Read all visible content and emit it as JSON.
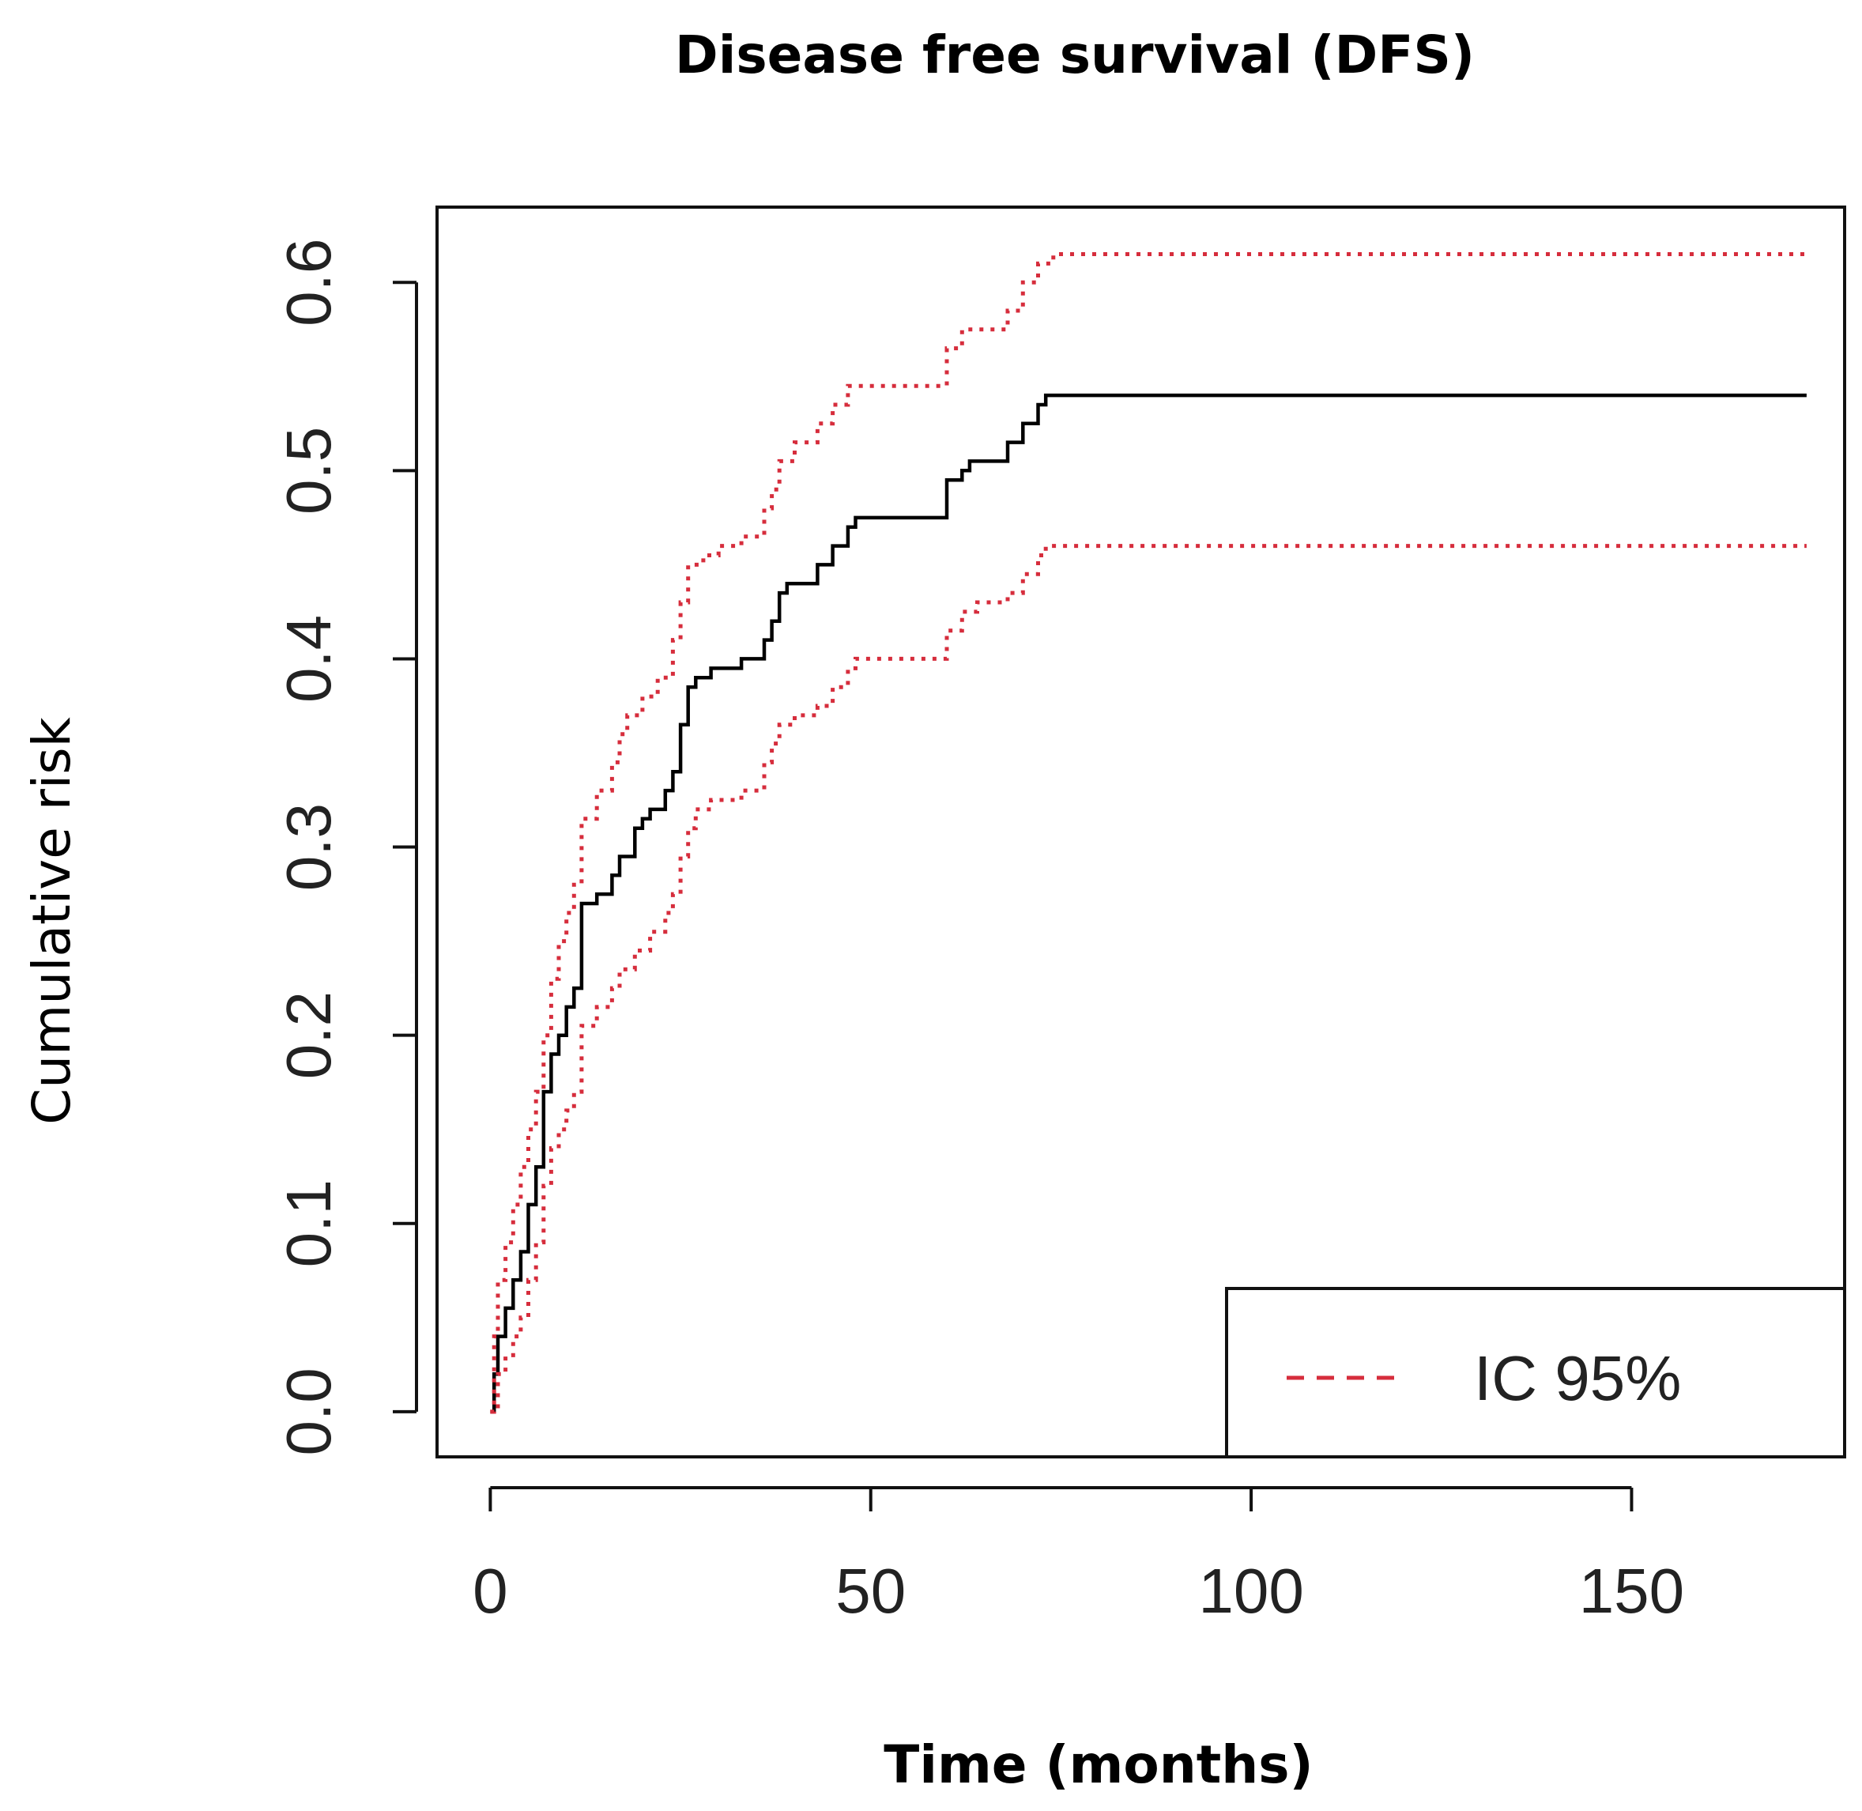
{
  "chart_data": {
    "type": "line",
    "title": "Disease free survival (DFS)",
    "xlabel": "Time (months)",
    "ylabel": "Cumulative risk",
    "xlim": [
      -7,
      178
    ],
    "ylim": [
      -0.024,
      0.64
    ],
    "xticks": [
      0,
      50,
      100,
      150
    ],
    "xtick_labels": [
      "0",
      "50",
      "100",
      "150"
    ],
    "yticks": [
      0.0,
      0.1,
      0.2,
      0.3,
      0.4,
      0.5,
      0.6
    ],
    "ytick_labels": [
      "0.0",
      "0.1",
      "0.2",
      "0.3",
      "0.4",
      "0.5",
      "0.6"
    ],
    "legend": {
      "position": "bottom-right",
      "entries": [
        {
          "label": "IC 95%",
          "style": "dashed",
          "color": "#d62d3c"
        }
      ]
    },
    "series": [
      {
        "name": "Cumulative risk",
        "color": "#000000",
        "style": "step-solid",
        "points": [
          [
            0,
            0
          ],
          [
            0.5,
            0.02
          ],
          [
            1,
            0.04
          ],
          [
            2,
            0.055
          ],
          [
            3,
            0.07
          ],
          [
            4,
            0.085
          ],
          [
            5,
            0.11
          ],
          [
            6,
            0.13
          ],
          [
            7,
            0.17
          ],
          [
            8,
            0.19
          ],
          [
            9,
            0.2
          ],
          [
            10,
            0.215
          ],
          [
            11,
            0.225
          ],
          [
            12,
            0.27
          ],
          [
            13,
            0.27
          ],
          [
            14,
            0.275
          ],
          [
            16,
            0.285
          ],
          [
            17,
            0.295
          ],
          [
            19,
            0.31
          ],
          [
            20,
            0.315
          ],
          [
            21,
            0.32
          ],
          [
            23,
            0.33
          ],
          [
            24,
            0.34
          ],
          [
            25,
            0.365
          ],
          [
            26,
            0.385
          ],
          [
            27,
            0.39
          ],
          [
            29,
            0.395
          ],
          [
            33,
            0.4
          ],
          [
            36,
            0.41
          ],
          [
            37,
            0.42
          ],
          [
            38,
            0.435
          ],
          [
            39,
            0.44
          ],
          [
            43,
            0.45
          ],
          [
            45,
            0.46
          ],
          [
            47,
            0.47
          ],
          [
            48,
            0.475
          ],
          [
            60,
            0.495
          ],
          [
            62,
            0.5
          ],
          [
            63,
            0.505
          ],
          [
            68,
            0.515
          ],
          [
            70,
            0.525
          ],
          [
            72,
            0.535
          ],
          [
            73,
            0.54
          ],
          [
            173,
            0.54
          ]
        ]
      },
      {
        "name": "IC 95% upper",
        "color": "#d62d3c",
        "style": "step-dotted",
        "points": [
          [
            0,
            0
          ],
          [
            0.5,
            0.04
          ],
          [
            1,
            0.07
          ],
          [
            2,
            0.09
          ],
          [
            3,
            0.11
          ],
          [
            4,
            0.13
          ],
          [
            5,
            0.15
          ],
          [
            6,
            0.17
          ],
          [
            7,
            0.2
          ],
          [
            8,
            0.23
          ],
          [
            9,
            0.25
          ],
          [
            10,
            0.265
          ],
          [
            11,
            0.28
          ],
          [
            12,
            0.315
          ],
          [
            14,
            0.33
          ],
          [
            16,
            0.345
          ],
          [
            17,
            0.36
          ],
          [
            18,
            0.37
          ],
          [
            20,
            0.38
          ],
          [
            22,
            0.39
          ],
          [
            24,
            0.41
          ],
          [
            25,
            0.43
          ],
          [
            26,
            0.45
          ],
          [
            28,
            0.455
          ],
          [
            30,
            0.46
          ],
          [
            33,
            0.465
          ],
          [
            36,
            0.48
          ],
          [
            37,
            0.49
          ],
          [
            38,
            0.505
          ],
          [
            40,
            0.515
          ],
          [
            43,
            0.525
          ],
          [
            45,
            0.535
          ],
          [
            47,
            0.545
          ],
          [
            60,
            0.565
          ],
          [
            62,
            0.575
          ],
          [
            68,
            0.585
          ],
          [
            70,
            0.6
          ],
          [
            72,
            0.61
          ],
          [
            74,
            0.615
          ],
          [
            173,
            0.615
          ]
        ]
      },
      {
        "name": "IC 95% lower",
        "color": "#d62d3c",
        "style": "step-dotted",
        "points": [
          [
            0,
            0
          ],
          [
            1,
            0.02
          ],
          [
            2,
            0.03
          ],
          [
            3,
            0.04
          ],
          [
            4,
            0.05
          ],
          [
            5,
            0.07
          ],
          [
            6,
            0.09
          ],
          [
            7,
            0.12
          ],
          [
            8,
            0.14
          ],
          [
            9,
            0.15
          ],
          [
            10,
            0.16
          ],
          [
            11,
            0.17
          ],
          [
            12,
            0.205
          ],
          [
            14,
            0.215
          ],
          [
            16,
            0.225
          ],
          [
            17,
            0.235
          ],
          [
            19,
            0.245
          ],
          [
            21,
            0.255
          ],
          [
            23,
            0.265
          ],
          [
            24,
            0.275
          ],
          [
            25,
            0.295
          ],
          [
            26,
            0.31
          ],
          [
            27,
            0.32
          ],
          [
            29,
            0.325
          ],
          [
            33,
            0.33
          ],
          [
            36,
            0.345
          ],
          [
            37,
            0.355
          ],
          [
            38,
            0.365
          ],
          [
            40,
            0.37
          ],
          [
            43,
            0.375
          ],
          [
            45,
            0.385
          ],
          [
            47,
            0.395
          ],
          [
            48,
            0.4
          ],
          [
            60,
            0.415
          ],
          [
            62,
            0.425
          ],
          [
            64,
            0.43
          ],
          [
            68,
            0.435
          ],
          [
            70,
            0.445
          ],
          [
            72,
            0.455
          ],
          [
            73,
            0.46
          ],
          [
            173,
            0.46
          ]
        ]
      }
    ]
  }
}
